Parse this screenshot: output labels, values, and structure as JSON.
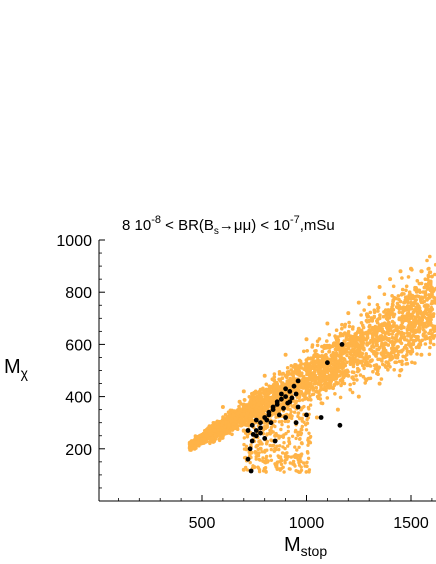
{
  "chart_data": {
    "type": "scatter",
    "title": {
      "prefix": "8 10",
      "exp1": "-8",
      "mid1": " < BR(B",
      "sub": "s",
      "mid2": "→μμ) < 10",
      "exp2": "-7",
      "suffix": ",mSu"
    },
    "xlabel": {
      "main": "M",
      "sub": "stop"
    },
    "ylabel": {
      "main": "M",
      "sub": "χ"
    },
    "xlim": [
      0,
      1600
    ],
    "ylim": [
      0,
      1000
    ],
    "xticks": [
      500,
      1000,
      1500
    ],
    "yticks": [
      200,
      400,
      600,
      800,
      1000
    ],
    "grid": false,
    "colors": {
      "band": "#FFB347",
      "highlight": "#000000"
    },
    "series": [
      {
        "role": "band",
        "color": "#FFB347",
        "marker_size": 2,
        "points": [
          [
            450,
            215
          ],
          [
            480,
            225
          ],
          [
            520,
            250
          ],
          [
            560,
            270
          ],
          [
            600,
            300
          ],
          [
            650,
            330
          ],
          [
            700,
            360
          ],
          [
            750,
            390
          ],
          [
            800,
            420
          ],
          [
            850,
            450
          ],
          [
            900,
            480
          ],
          [
            950,
            510
          ],
          [
            1000,
            540
          ],
          [
            1050,
            560
          ],
          [
            1100,
            590
          ],
          [
            1150,
            610
          ],
          [
            1200,
            640
          ],
          [
            1250,
            660
          ],
          [
            1300,
            690
          ],
          [
            1350,
            700
          ],
          [
            1400,
            720
          ],
          [
            1450,
            740
          ],
          [
            1500,
            760
          ],
          [
            1550,
            780
          ],
          [
            1600,
            790
          ],
          [
            1400,
            850
          ],
          [
            1450,
            880
          ],
          [
            1500,
            890
          ],
          [
            1550,
            880
          ],
          [
            1600,
            860
          ],
          [
            1350,
            820
          ],
          [
            1300,
            780
          ],
          [
            1250,
            760
          ],
          [
            1200,
            720
          ],
          [
            1100,
            680
          ],
          [
            1000,
            620
          ],
          [
            900,
            560
          ],
          [
            800,
            480
          ],
          [
            700,
            420
          ],
          [
            600,
            360
          ],
          [
            1000,
            420
          ],
          [
            1100,
            450
          ],
          [
            1200,
            480
          ],
          [
            1300,
            520
          ],
          [
            1400,
            560
          ],
          [
            1500,
            600
          ],
          [
            1600,
            640
          ],
          [
            900,
            380
          ],
          [
            800,
            330
          ],
          [
            750,
            300
          ],
          [
            700,
            270
          ],
          [
            850,
            200
          ],
          [
            900,
            180
          ],
          [
            800,
            150
          ],
          [
            750,
            130
          ],
          [
            700,
            120
          ],
          [
            780,
            200
          ],
          [
            850,
            250
          ],
          [
            950,
            300
          ],
          [
            1050,
            320
          ],
          [
            1150,
            350
          ],
          [
            1250,
            400
          ],
          [
            1350,
            450
          ],
          [
            1450,
            500
          ],
          [
            1550,
            560
          ],
          [
            600,
            250
          ],
          [
            650,
            280
          ],
          [
            550,
            240
          ],
          [
            620,
            320
          ],
          [
            680,
            380
          ],
          [
            740,
            400
          ]
        ]
      },
      {
        "role": "highlight",
        "color": "#000000",
        "marker_size": 2.4,
        "points": [
          [
            720,
            270
          ],
          [
            740,
            290
          ],
          [
            760,
            310
          ],
          [
            780,
            300
          ],
          [
            800,
            320
          ],
          [
            820,
            330
          ],
          [
            840,
            350
          ],
          [
            860,
            370
          ],
          [
            880,
            390
          ],
          [
            900,
            400
          ],
          [
            920,
            420
          ],
          [
            940,
            440
          ],
          [
            960,
            460
          ],
          [
            880,
            410
          ],
          [
            860,
            380
          ],
          [
            900,
            430
          ],
          [
            840,
            360
          ],
          [
            820,
            340
          ],
          [
            780,
            280
          ],
          [
            760,
            250
          ],
          [
            740,
            230
          ],
          [
            730,
            200
          ],
          [
            720,
            160
          ],
          [
            735,
            115
          ],
          [
            800,
            240
          ],
          [
            850,
            230
          ],
          [
            900,
            320
          ],
          [
            950,
            300
          ],
          [
            1000,
            330
          ],
          [
            1070,
            320
          ],
          [
            1100,
            530
          ],
          [
            1170,
            600
          ],
          [
            1160,
            290
          ],
          [
            960,
            360
          ],
          [
            920,
            380
          ],
          [
            830,
            300
          ],
          [
            870,
            330
          ],
          [
            890,
            355
          ],
          [
            910,
            375
          ],
          [
            930,
            395
          ],
          [
            950,
            410
          ],
          [
            780,
            260
          ],
          [
            760,
            270
          ],
          [
            745,
            255
          ],
          [
            810,
            310
          ]
        ]
      }
    ]
  }
}
